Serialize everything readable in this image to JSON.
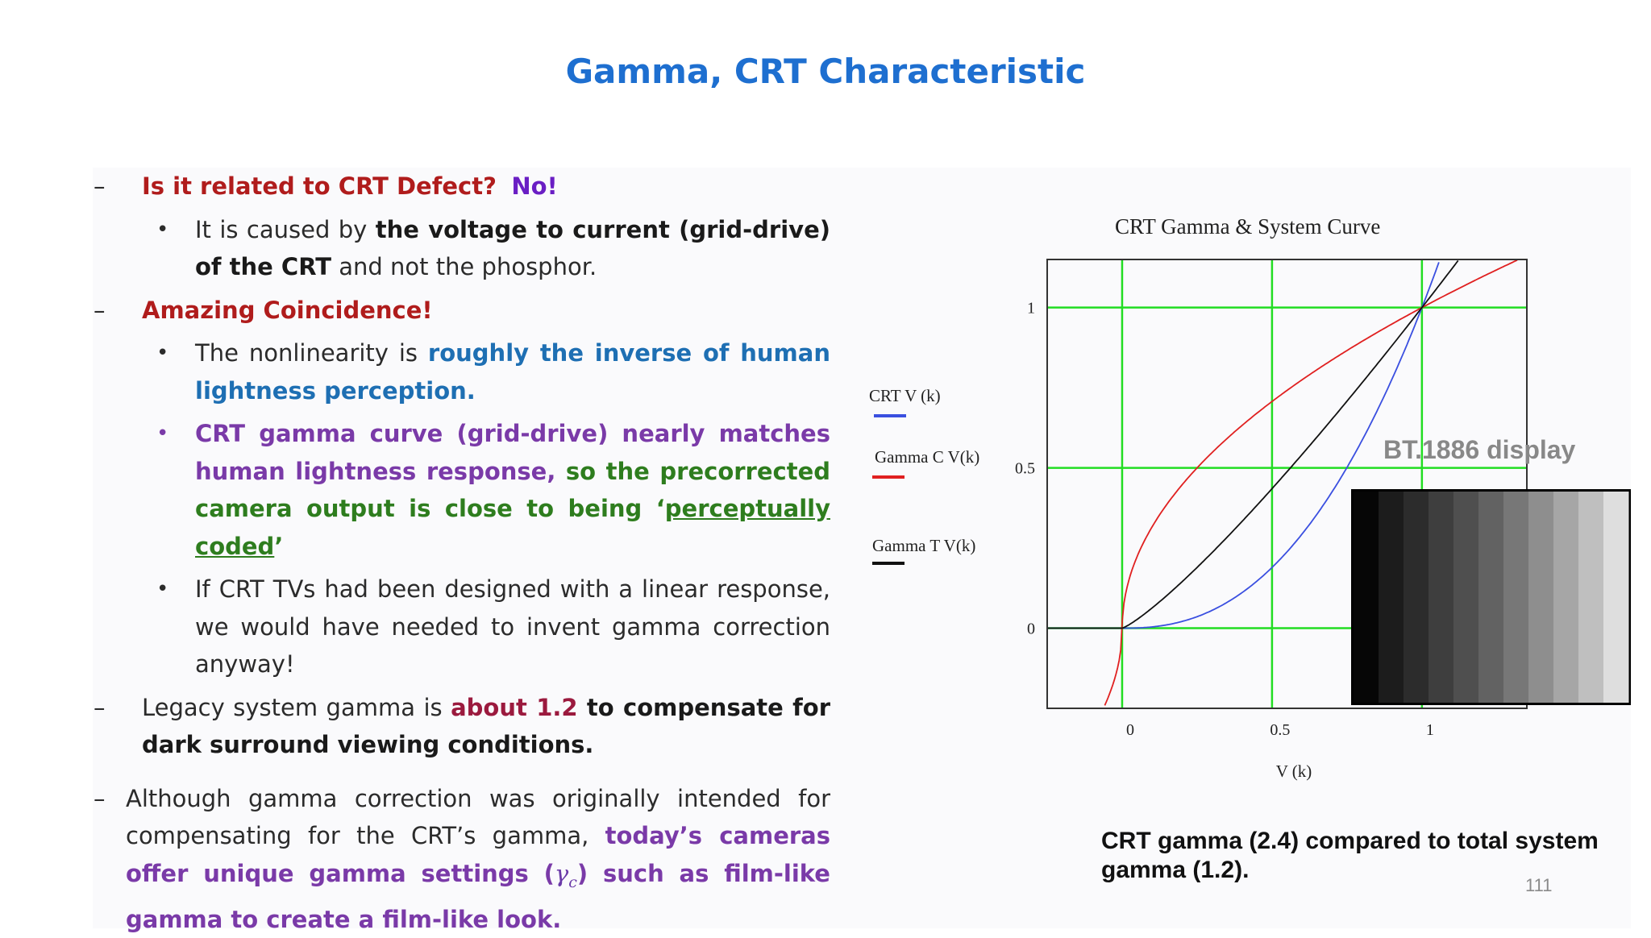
{
  "slide": {
    "title": "Gamma, CRT Characteristic",
    "page_number": "111",
    "caption": "CRT gamma (2.4) compared  to total system gamma (1.2)."
  },
  "bullets": {
    "b1": {
      "dash": "–",
      "q": "Is it related to CRT Defect?",
      "ans": "No!"
    },
    "b1_1": {
      "dot": "•",
      "t1": "It is caused by ",
      "t2": "the voltage to current (grid-drive) of the CRT",
      "t3": " and not the phosphor."
    },
    "b2": {
      "dash": "–",
      "text": "Amazing Coincidence!"
    },
    "b2_1": {
      "dot": "•",
      "t1": "The nonlinearity is ",
      "t2": "roughly the inverse of human lightness perception."
    },
    "b2_2": {
      "dot": "•",
      "t1": "CRT gamma curve (grid-drive) nearly matches human lightness response,",
      "t2": " so the precorrected camera output is close to being ‘",
      "t3": "perceptually coded",
      "t4": "’"
    },
    "b2_3": {
      "dot": "•",
      "text": "If CRT TVs had been designed with a linear response, we would have needed to invent gamma correction anyway!"
    },
    "b3": {
      "dash": "–",
      "t1": "Legacy system gamma is ",
      "t2": "about 1.2",
      "t3": " to compensate for dark surround viewing conditions."
    },
    "b4": {
      "dash": "–",
      "t1": "Although gamma correction was originally intended for compensating for the CRT’s gamma, ",
      "t2": "today’s cameras offer unique gamma settings (",
      "sym": "γ",
      "sub": "c",
      "t3": ") such as film-like gamma to create a film-like look."
    }
  },
  "chart_data": {
    "type": "line",
    "title": "CRT Gamma & System Curve",
    "xlabel": "V (k)",
    "ylabel": "",
    "xlim": [
      -0.25,
      1.35
    ],
    "ylim": [
      -0.25,
      1.15
    ],
    "xticks": [
      "0",
      "0.5",
      "1"
    ],
    "yticks": [
      "1",
      "0.5",
      "0"
    ],
    "grid": true,
    "legend": [
      {
        "name": "CRT  V (k)",
        "color": "#3a4fe0"
      },
      {
        "name": "Gamma  C  V(k)",
        "color": "#e02020"
      },
      {
        "name": "Gamma T  V(k)",
        "color": "#111111"
      }
    ],
    "series": [
      {
        "name": "CRT  V (k)",
        "color": "#3a4fe0",
        "gamma": 2.4
      },
      {
        "name": "Gamma  C  V(k)",
        "color": "#e02020",
        "gamma": 0.5
      },
      {
        "name": "Gamma T  V(k)",
        "color": "#111111",
        "gamma": 1.2
      }
    ]
  },
  "inset": {
    "label": "BT.1886 display",
    "steps": [
      "#060606",
      "#1c1c1c",
      "#2c2c2c",
      "#3e3e3e",
      "#4f4f4f",
      "#626262",
      "#777777",
      "#8e8e8e",
      "#a6a6a6",
      "#bfbfbf",
      "#dedede"
    ]
  }
}
